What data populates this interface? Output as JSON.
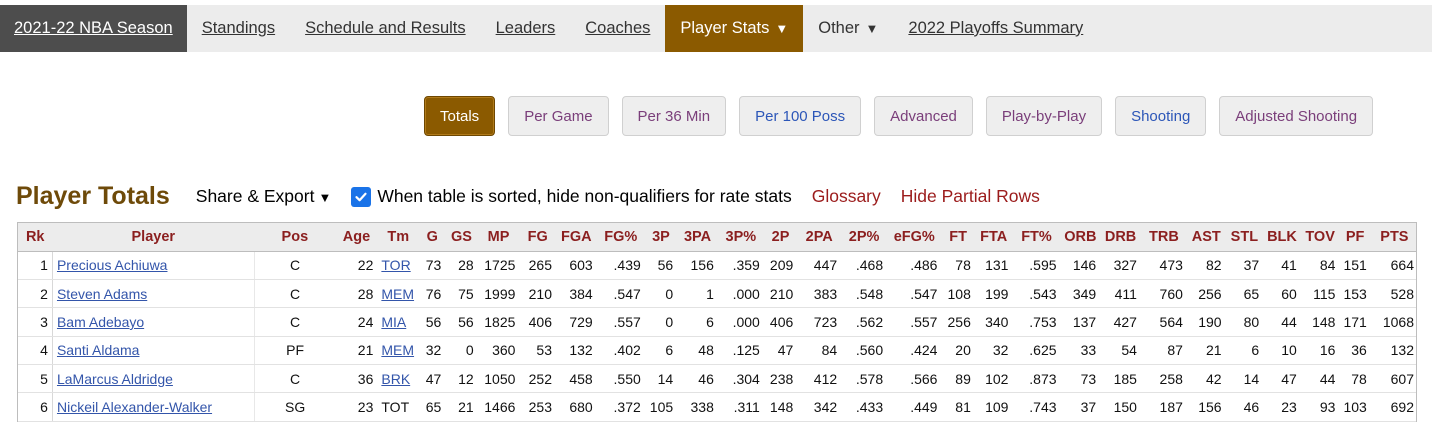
{
  "nav": {
    "items": [
      {
        "label": "2021-22 NBA Season",
        "type": "first"
      },
      {
        "label": "Standings",
        "type": "link"
      },
      {
        "label": "Schedule and Results",
        "type": "link"
      },
      {
        "label": "Leaders",
        "type": "link"
      },
      {
        "label": "Coaches",
        "type": "link"
      },
      {
        "label": "Player Stats",
        "type": "active",
        "caret": "▼"
      },
      {
        "label": "Other",
        "type": "plain",
        "caret": "▼"
      },
      {
        "label": "2022 Playoffs Summary",
        "type": "link"
      }
    ]
  },
  "filters": [
    {
      "label": "Totals",
      "style": "active"
    },
    {
      "label": "Per Game",
      "style": "purple"
    },
    {
      "label": "Per 36 Min",
      "style": "purple"
    },
    {
      "label": "Per 100 Poss",
      "style": "blue"
    },
    {
      "label": "Advanced",
      "style": "purple"
    },
    {
      "label": "Play-by-Play",
      "style": "purple"
    },
    {
      "label": "Shooting",
      "style": "blue"
    },
    {
      "label": "Adjusted Shooting",
      "style": "purple"
    }
  ],
  "section": {
    "title": "Player Totals",
    "share_label": "Share & Export",
    "share_caret": "▼",
    "checkbox_checked": true,
    "checkbox_label": "When table is sorted, hide non-qualifiers for rate stats",
    "glossary_label": "Glossary",
    "hide_partial_label": "Hide Partial Rows"
  },
  "table": {
    "columns": [
      "Rk",
      "Player",
      "Pos",
      "Age",
      "Tm",
      "G",
      "GS",
      "MP",
      "FG",
      "FGA",
      "FG%",
      "3P",
      "3PA",
      "3P%",
      "2P",
      "2PA",
      "2P%",
      "eFG%",
      "FT",
      "FTA",
      "FT%",
      "ORB",
      "DRB",
      "TRB",
      "AST",
      "STL",
      "BLK",
      "TOV",
      "PF",
      "PTS"
    ],
    "rows": [
      [
        "1",
        "Precious Achiuwa",
        "C",
        "22",
        "TOR",
        "73",
        "28",
        "1725",
        "265",
        "603",
        ".439",
        "56",
        "156",
        ".359",
        "209",
        "447",
        ".468",
        ".486",
        "78",
        "131",
        ".595",
        "146",
        "327",
        "473",
        "82",
        "37",
        "41",
        "84",
        "151",
        "664"
      ],
      [
        "2",
        "Steven Adams",
        "C",
        "28",
        "MEM",
        "76",
        "75",
        "1999",
        "210",
        "384",
        ".547",
        "0",
        "1",
        ".000",
        "210",
        "383",
        ".548",
        ".547",
        "108",
        "199",
        ".543",
        "349",
        "411",
        "760",
        "256",
        "65",
        "60",
        "115",
        "153",
        "528"
      ],
      [
        "3",
        "Bam Adebayo",
        "C",
        "24",
        "MIA",
        "56",
        "56",
        "1825",
        "406",
        "729",
        ".557",
        "0",
        "6",
        ".000",
        "406",
        "723",
        ".562",
        ".557",
        "256",
        "340",
        ".753",
        "137",
        "427",
        "564",
        "190",
        "80",
        "44",
        "148",
        "171",
        "1068"
      ],
      [
        "4",
        "Santi Aldama",
        "PF",
        "21",
        "MEM",
        "32",
        "0",
        "360",
        "53",
        "132",
        ".402",
        "6",
        "48",
        ".125",
        "47",
        "84",
        ".560",
        ".424",
        "20",
        "32",
        ".625",
        "33",
        "54",
        "87",
        "21",
        "6",
        "10",
        "16",
        "36",
        "132"
      ],
      [
        "5",
        "LaMarcus Aldridge",
        "C",
        "36",
        "BRK",
        "47",
        "12",
        "1050",
        "252",
        "458",
        ".550",
        "14",
        "46",
        ".304",
        "238",
        "412",
        ".578",
        ".566",
        "89",
        "102",
        ".873",
        "73",
        "185",
        "258",
        "42",
        "14",
        "47",
        "44",
        "78",
        "607"
      ],
      [
        "6",
        "Nickeil Alexander-Walker",
        "SG",
        "23",
        "TOT",
        "65",
        "21",
        "1466",
        "253",
        "680",
        ".372",
        "105",
        "338",
        ".311",
        "148",
        "342",
        ".433",
        ".449",
        "81",
        "109",
        ".743",
        "37",
        "150",
        "187",
        "156",
        "46",
        "23",
        "93",
        "103",
        "692"
      ]
    ],
    "team_linked": [
      true,
      true,
      true,
      true,
      true,
      false
    ]
  },
  "colors": {
    "accent_brown": "#8b5a00",
    "title_brown": "#6e4a09",
    "header_red": "#8b1f1f",
    "link_blue": "#3355aa"
  }
}
